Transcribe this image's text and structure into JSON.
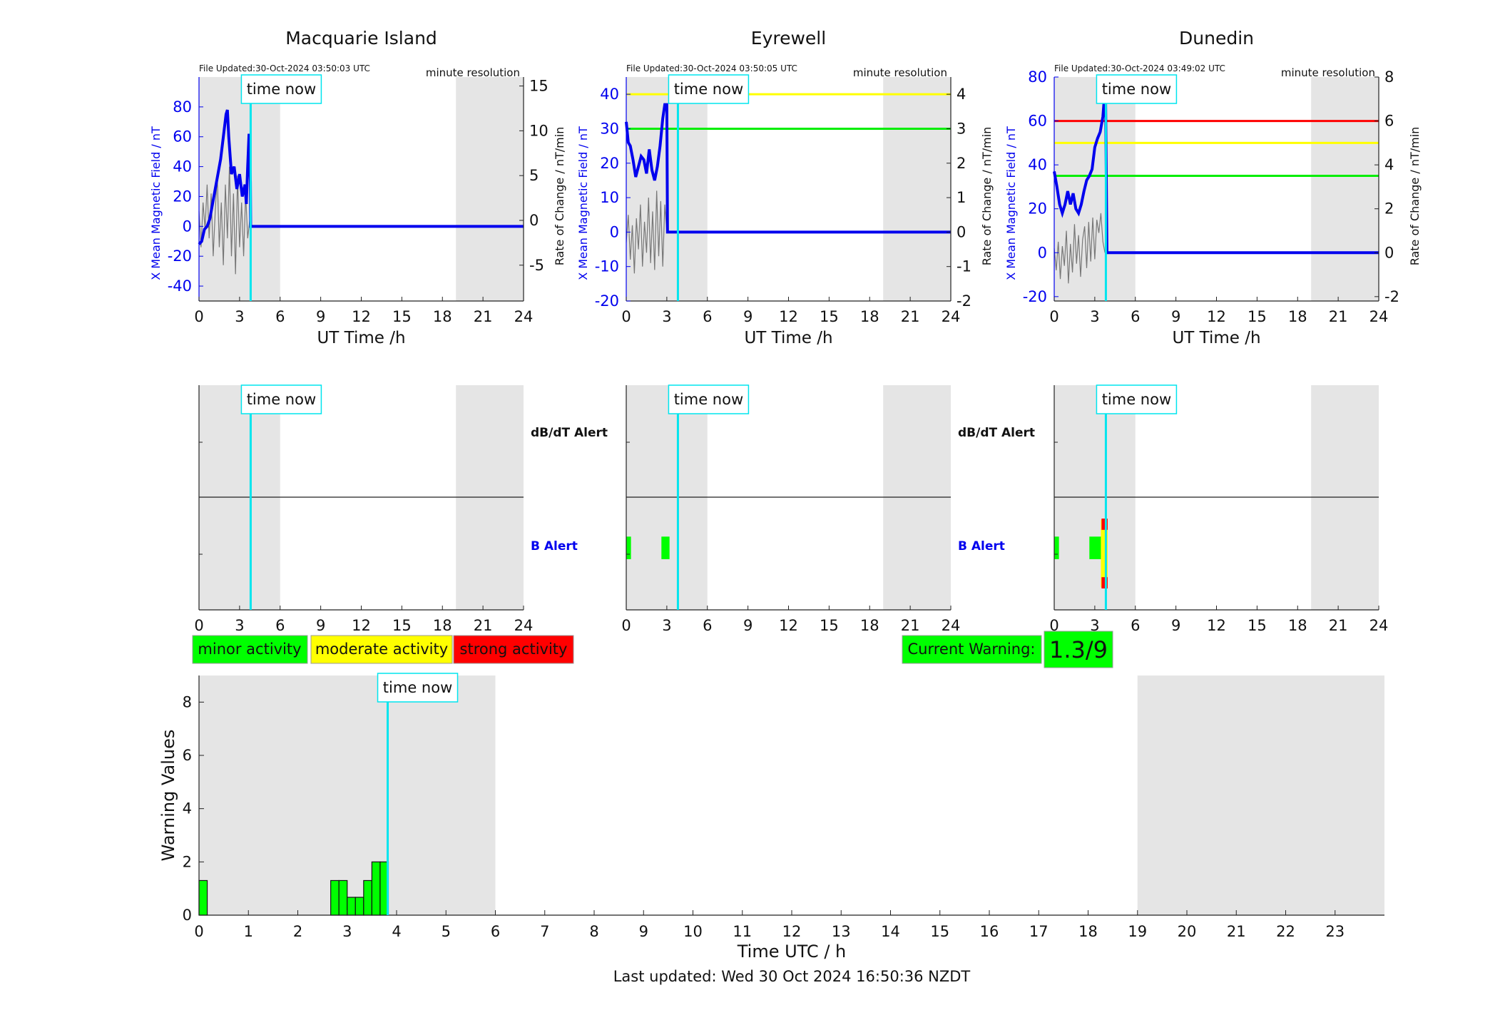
{
  "labels": {
    "resolution": "minute resolution",
    "time_now": "time now",
    "x_axis_top": "UT Time /h",
    "y_left_top": "X Mean Magnetic Field / nT",
    "y_right_top": "Rate of Change / nT/min",
    "alert_dbdt": "dB/dT Alert",
    "alert_b": "B Alert",
    "bottom_xlabel": "Time UTC / h",
    "bottom_ylabel": "Warning Values",
    "last_updated": "Last updated: Wed 30 Oct 2024 16:50:36 NZDT"
  },
  "legend": {
    "minor": "minor activity",
    "moderate": "moderate activity",
    "strong": "strong activity"
  },
  "current_warning": {
    "label": "Current Warning:",
    "value": "1.3/9"
  },
  "colors": {
    "minor": "#00ff00",
    "moderate": "#ffff00",
    "strong": "#ff0000",
    "shade": "#e5e5e5",
    "time_now": "#00e5ee",
    "field": "#0000ee"
  },
  "chart_data": [
    {
      "type": "line",
      "title": "Macquarie Island",
      "file_updated": "File Updated:30-Oct-2024 03:50:03 UTC",
      "xlim": [
        0,
        24
      ],
      "x_ticks": [
        0,
        3,
        6,
        9,
        12,
        15,
        18,
        21,
        24
      ],
      "ylim_left": [
        -50,
        100
      ],
      "left_ticks": [
        -40,
        -20,
        0,
        20,
        40,
        60,
        80
      ],
      "ylim_right": [
        -9,
        16
      ],
      "right_ticks": [
        -5,
        0,
        5,
        10,
        15
      ],
      "time_now": 3.82,
      "shaded": [
        [
          0,
          6
        ],
        [
          19,
          24
        ]
      ],
      "thresholds": [],
      "field_series": {
        "x": [
          0,
          0.2,
          0.4,
          0.6,
          0.8,
          1.0,
          1.2,
          1.4,
          1.6,
          1.8,
          2.0,
          2.1,
          2.2,
          2.4,
          2.6,
          2.8,
          3.0,
          3.2,
          3.4,
          3.5,
          3.6,
          3.7,
          3.8,
          3.82,
          24
        ],
        "y": [
          -12,
          -10,
          -2,
          0,
          5,
          15,
          25,
          35,
          45,
          60,
          75,
          78,
          60,
          35,
          40,
          25,
          35,
          20,
          28,
          15,
          40,
          62,
          30,
          0,
          0
        ]
      },
      "rate_series": {
        "x": [
          0,
          0.15,
          0.3,
          0.45,
          0.6,
          0.75,
          0.9,
          1.05,
          1.2,
          1.35,
          1.5,
          1.65,
          1.8,
          1.95,
          2.1,
          2.25,
          2.4,
          2.55,
          2.7,
          2.85,
          3.0,
          3.15,
          3.3,
          3.45,
          3.6,
          3.75
        ],
        "y": [
          1,
          -3,
          2,
          -1,
          4,
          -2,
          3,
          -4,
          1,
          5,
          -3,
          2,
          -5,
          4,
          -2,
          6,
          -4,
          3,
          -6,
          5,
          -3,
          2,
          -4,
          3,
          -2,
          0
        ]
      },
      "b_alert": [],
      "dbdt_alert": []
    },
    {
      "type": "line",
      "title": "Eyrewell",
      "file_updated": "File Updated:30-Oct-2024 03:50:05 UTC",
      "xlim": [
        0,
        24
      ],
      "x_ticks": [
        0,
        3,
        6,
        9,
        12,
        15,
        18,
        21,
        24
      ],
      "ylim_left": [
        -20,
        45
      ],
      "left_ticks": [
        -20,
        -10,
        0,
        10,
        20,
        30,
        40
      ],
      "ylim_right": [
        -2,
        4.5
      ],
      "right_ticks": [
        -2,
        -1,
        0,
        1,
        2,
        3,
        4
      ],
      "time_now": 3.82,
      "shaded": [
        [
          0,
          6
        ],
        [
          19,
          24
        ]
      ],
      "thresholds": [
        {
          "value": 30,
          "color": "#00ee00"
        },
        {
          "value": 40,
          "color": "#ffff00"
        }
      ],
      "field_series": {
        "x": [
          0,
          0.15,
          0.3,
          0.5,
          0.7,
          0.9,
          1.1,
          1.3,
          1.5,
          1.7,
          1.9,
          2.1,
          2.3,
          2.5,
          2.7,
          2.85,
          3.0,
          3.05,
          24
        ],
        "y": [
          32,
          26,
          25,
          21,
          16,
          19,
          22,
          21,
          17,
          24,
          18,
          15,
          19,
          25,
          33,
          37,
          37,
          0,
          0
        ]
      },
      "rate_series": {
        "x": [
          0,
          0.15,
          0.3,
          0.45,
          0.6,
          0.75,
          0.9,
          1.05,
          1.2,
          1.35,
          1.5,
          1.65,
          1.8,
          1.95,
          2.1,
          2.25,
          2.4,
          2.55,
          2.7,
          2.85,
          3.0
        ],
        "y": [
          -0.3,
          0.5,
          -0.8,
          0.2,
          -1.2,
          0.4,
          -0.5,
          0.8,
          -1.0,
          0.3,
          -0.6,
          1.0,
          -0.9,
          0.6,
          -1.1,
          1.2,
          -0.7,
          0.9,
          -1.0,
          0.8,
          0
        ]
      },
      "b_alert": [
        {
          "x0": 0,
          "x1": 0.35,
          "level": "minor"
        },
        {
          "x0": 2.6,
          "x1": 3.2,
          "level": "minor"
        }
      ],
      "dbdt_alert": []
    },
    {
      "type": "line",
      "title": "Dunedin",
      "file_updated": "File Updated:30-Oct-2024 03:49:02 UTC",
      "xlim": [
        0,
        24
      ],
      "x_ticks": [
        0,
        3,
        6,
        9,
        12,
        15,
        18,
        21,
        24
      ],
      "ylim_left": [
        -22,
        80
      ],
      "left_ticks": [
        -20,
        0,
        20,
        40,
        60,
        80
      ],
      "ylim_right": [
        -2.2,
        8
      ],
      "right_ticks": [
        -2,
        0,
        2,
        4,
        6,
        8
      ],
      "time_now": 3.82,
      "shaded": [
        [
          0,
          6
        ],
        [
          19,
          24
        ]
      ],
      "thresholds": [
        {
          "value": 35,
          "color": "#00ee00"
        },
        {
          "value": 50,
          "color": "#ffff00"
        },
        {
          "value": 60,
          "color": "#ff0000"
        }
      ],
      "field_series": {
        "x": [
          0,
          0.2,
          0.4,
          0.6,
          0.8,
          1.0,
          1.2,
          1.4,
          1.6,
          1.8,
          2.0,
          2.2,
          2.4,
          2.6,
          2.8,
          3.0,
          3.2,
          3.4,
          3.6,
          3.7,
          3.8,
          3.9,
          24
        ],
        "y": [
          37,
          30,
          22,
          18,
          22,
          28,
          22,
          27,
          20,
          18,
          22,
          28,
          33,
          35,
          38,
          48,
          52,
          55,
          62,
          70,
          70,
          0,
          0
        ]
      },
      "rate_series": {
        "x": [
          0,
          0.15,
          0.3,
          0.45,
          0.6,
          0.75,
          0.9,
          1.05,
          1.2,
          1.35,
          1.5,
          1.65,
          1.8,
          1.95,
          2.1,
          2.25,
          2.4,
          2.55,
          2.7,
          2.85,
          3.0,
          3.15,
          3.3,
          3.45,
          3.6,
          3.75
        ],
        "y": [
          0.2,
          -0.8,
          0.5,
          -1.2,
          0.3,
          -0.6,
          1.0,
          -1.4,
          0.4,
          -0.9,
          1.3,
          -0.5,
          0.8,
          -1.1,
          0.6,
          1.2,
          -0.7,
          1.4,
          -0.4,
          1.6,
          -0.3,
          1.5,
          0.9,
          1.8,
          0.5,
          0
        ]
      },
      "b_alert": [
        {
          "x0": 0,
          "x1": 0.35,
          "level": "minor",
          "y0": 0.45,
          "y1": 0.65
        },
        {
          "x0": 2.6,
          "x1": 3.6,
          "level": "minor",
          "y0": 0.45,
          "y1": 0.65
        },
        {
          "x0": 3.45,
          "x1": 3.95,
          "level": "moderate",
          "y0": 0.2,
          "y1": 0.8
        },
        {
          "x0": 3.5,
          "x1": 3.95,
          "level": "strong",
          "y0": 0.71,
          "y1": 0.81
        },
        {
          "x0": 3.5,
          "x1": 3.95,
          "level": "strong",
          "y0": 0.19,
          "y1": 0.29
        }
      ],
      "dbdt_alert": []
    },
    {
      "type": "bar",
      "xlabel": "Time UTC / h",
      "ylabel": "Warning Values",
      "xlim": [
        0,
        24
      ],
      "ylim": [
        0,
        9
      ],
      "x_ticks": [
        0,
        1,
        2,
        3,
        4,
        5,
        6,
        7,
        8,
        9,
        10,
        11,
        12,
        13,
        14,
        15,
        16,
        17,
        18,
        19,
        20,
        21,
        22,
        23
      ],
      "y_ticks": [
        0,
        2,
        4,
        6,
        8
      ],
      "time_now": 3.82,
      "shaded": [
        [
          0,
          6
        ],
        [
          19,
          24
        ]
      ],
      "bar_width": 0.1667,
      "x": [
        0,
        2.6667,
        2.8333,
        3.0,
        3.1667,
        3.3333,
        3.5,
        3.6667
      ],
      "values": [
        1.3,
        1.3,
        1.3,
        0.67,
        0.67,
        1.3,
        2.0,
        2.0
      ]
    }
  ]
}
